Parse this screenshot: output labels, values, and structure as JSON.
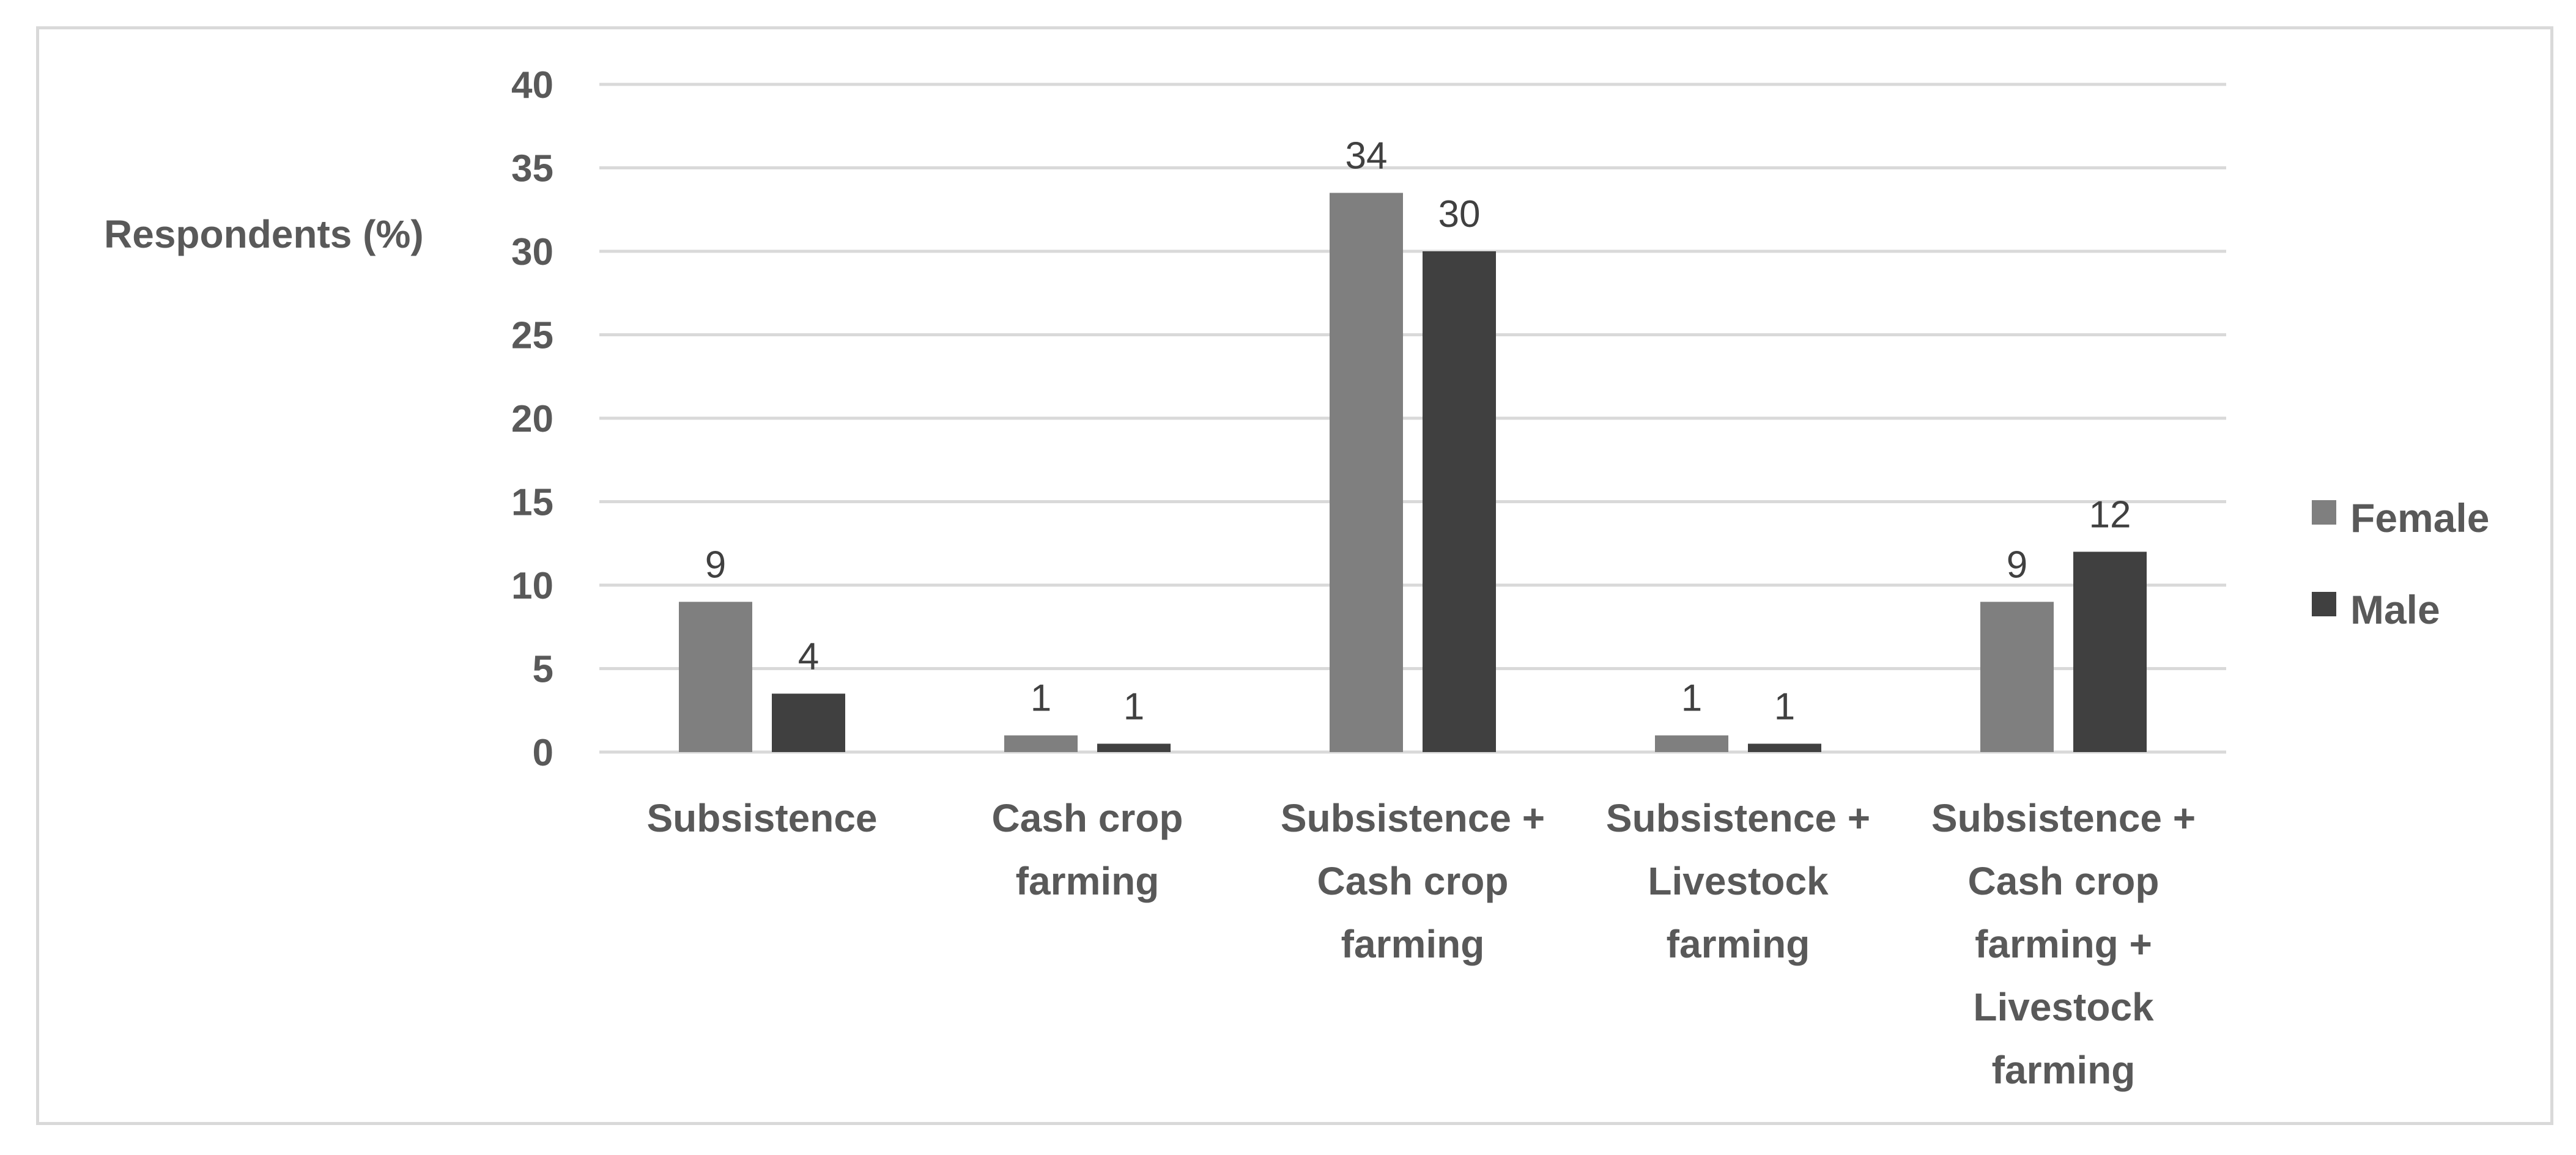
{
  "chart_data": {
    "type": "bar",
    "title": "",
    "xlabel": "",
    "ylabel": "Respondents  (%)",
    "ylim": [
      0,
      40
    ],
    "yticks": [
      0,
      5,
      10,
      15,
      20,
      25,
      30,
      35,
      40
    ],
    "grid": true,
    "legend_position": "right",
    "categories": [
      [
        "Subsistence"
      ],
      [
        "Cash crop",
        "farming"
      ],
      [
        "Subsistence +",
        "Cash crop",
        "farming"
      ],
      [
        "Subsistence +",
        "Livestock",
        "farming"
      ],
      [
        "Subsistence +",
        "Cash crop",
        "farming +",
        "Livestock",
        "farming"
      ]
    ],
    "series": [
      {
        "name": "Female",
        "color": "#7f7f7f",
        "values": [
          9,
          1,
          33.5,
          1,
          9
        ],
        "labels": [
          "9",
          "1",
          "34",
          "1",
          "9"
        ]
      },
      {
        "name": "Male",
        "color": "#404040",
        "values": [
          3.5,
          0.5,
          30,
          0.5,
          12
        ],
        "labels": [
          "4",
          "1",
          "30",
          "1",
          "12"
        ]
      }
    ],
    "colors": {
      "grid": "#d9d9d9",
      "text": "#595959",
      "data_label": "#404040",
      "frame": "#d9d9d9"
    }
  }
}
